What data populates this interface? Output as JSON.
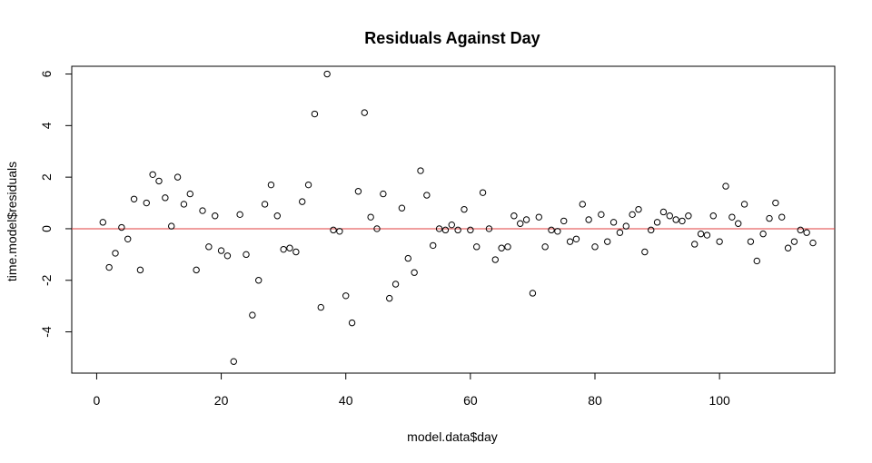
{
  "chart_data": {
    "type": "scatter",
    "title": "Residuals Against Day",
    "xlabel": "model.data$day",
    "ylabel": "time.model$residuals",
    "xlim": [
      -4,
      118.5
    ],
    "ylim": [
      -5.6,
      6.3
    ],
    "x_ticks": [
      0,
      20,
      40,
      60,
      80,
      100
    ],
    "y_ticks": [
      -4,
      -2,
      0,
      2,
      4,
      6
    ],
    "grid": false,
    "reference_line": {
      "y": 0,
      "color": "#e03c3c"
    },
    "point_color": "#000000",
    "x": [
      1,
      2,
      3,
      4,
      5,
      6,
      7,
      8,
      9,
      10,
      11,
      12,
      13,
      14,
      15,
      16,
      17,
      18,
      19,
      20,
      21,
      22,
      23,
      24,
      25,
      26,
      27,
      28,
      29,
      30,
      31,
      32,
      33,
      34,
      35,
      36,
      37,
      38,
      39,
      40,
      41,
      42,
      43,
      44,
      45,
      46,
      47,
      48,
      49,
      50,
      51,
      52,
      53,
      54,
      55,
      56,
      57,
      58,
      59,
      60,
      61,
      62,
      63,
      64,
      65,
      66,
      67,
      68,
      69,
      70,
      71,
      72,
      73,
      74,
      75,
      76,
      77,
      78,
      79,
      80,
      81,
      82,
      83,
      84,
      85,
      86,
      87,
      88,
      89,
      90,
      91,
      92,
      93,
      94,
      95,
      96,
      97,
      98,
      99,
      100,
      101,
      102,
      103,
      104,
      105,
      106,
      107,
      108,
      109,
      110,
      111,
      112,
      113,
      114,
      115
    ],
    "y": [
      0.25,
      -1.5,
      -0.95,
      0.05,
      -0.4,
      1.15,
      -1.6,
      1.0,
      2.1,
      1.85,
      1.2,
      0.1,
      2.0,
      0.95,
      1.35,
      -1.6,
      0.7,
      -0.7,
      0.5,
      -0.85,
      -1.05,
      -5.15,
      0.55,
      -1.0,
      -3.35,
      -2.0,
      0.95,
      1.7,
      0.5,
      -0.8,
      -0.75,
      -0.9,
      1.05,
      1.7,
      4.45,
      -3.05,
      6.0,
      -0.05,
      -0.1,
      -2.6,
      -3.65,
      1.45,
      4.5,
      0.45,
      0.0,
      1.35,
      -2.7,
      -2.15,
      0.8,
      -1.15,
      -1.7,
      2.25,
      1.3,
      -0.65,
      0.0,
      -0.05,
      0.15,
      -0.05,
      0.75,
      -0.05,
      -0.7,
      1.4,
      0.0,
      -1.2,
      -0.75,
      -0.7,
      0.5,
      0.2,
      0.35,
      -2.5,
      0.45,
      -0.7,
      -0.05,
      -0.1,
      0.3,
      -0.5,
      -0.4,
      0.95,
      0.35,
      -0.7,
      0.55,
      -0.5,
      0.25,
      -0.15,
      0.1,
      0.55,
      0.75,
      -0.9,
      -0.05,
      0.25,
      0.65,
      0.5,
      0.35,
      0.3,
      0.5,
      -0.6,
      -0.2,
      -0.25,
      0.5,
      -0.5,
      1.65,
      0.45,
      0.2,
      0.95,
      -0.5,
      -1.25,
      -0.2,
      0.4,
      1.0,
      0.45,
      -0.75,
      -0.5,
      -0.05,
      -0.15,
      -0.55
    ]
  }
}
